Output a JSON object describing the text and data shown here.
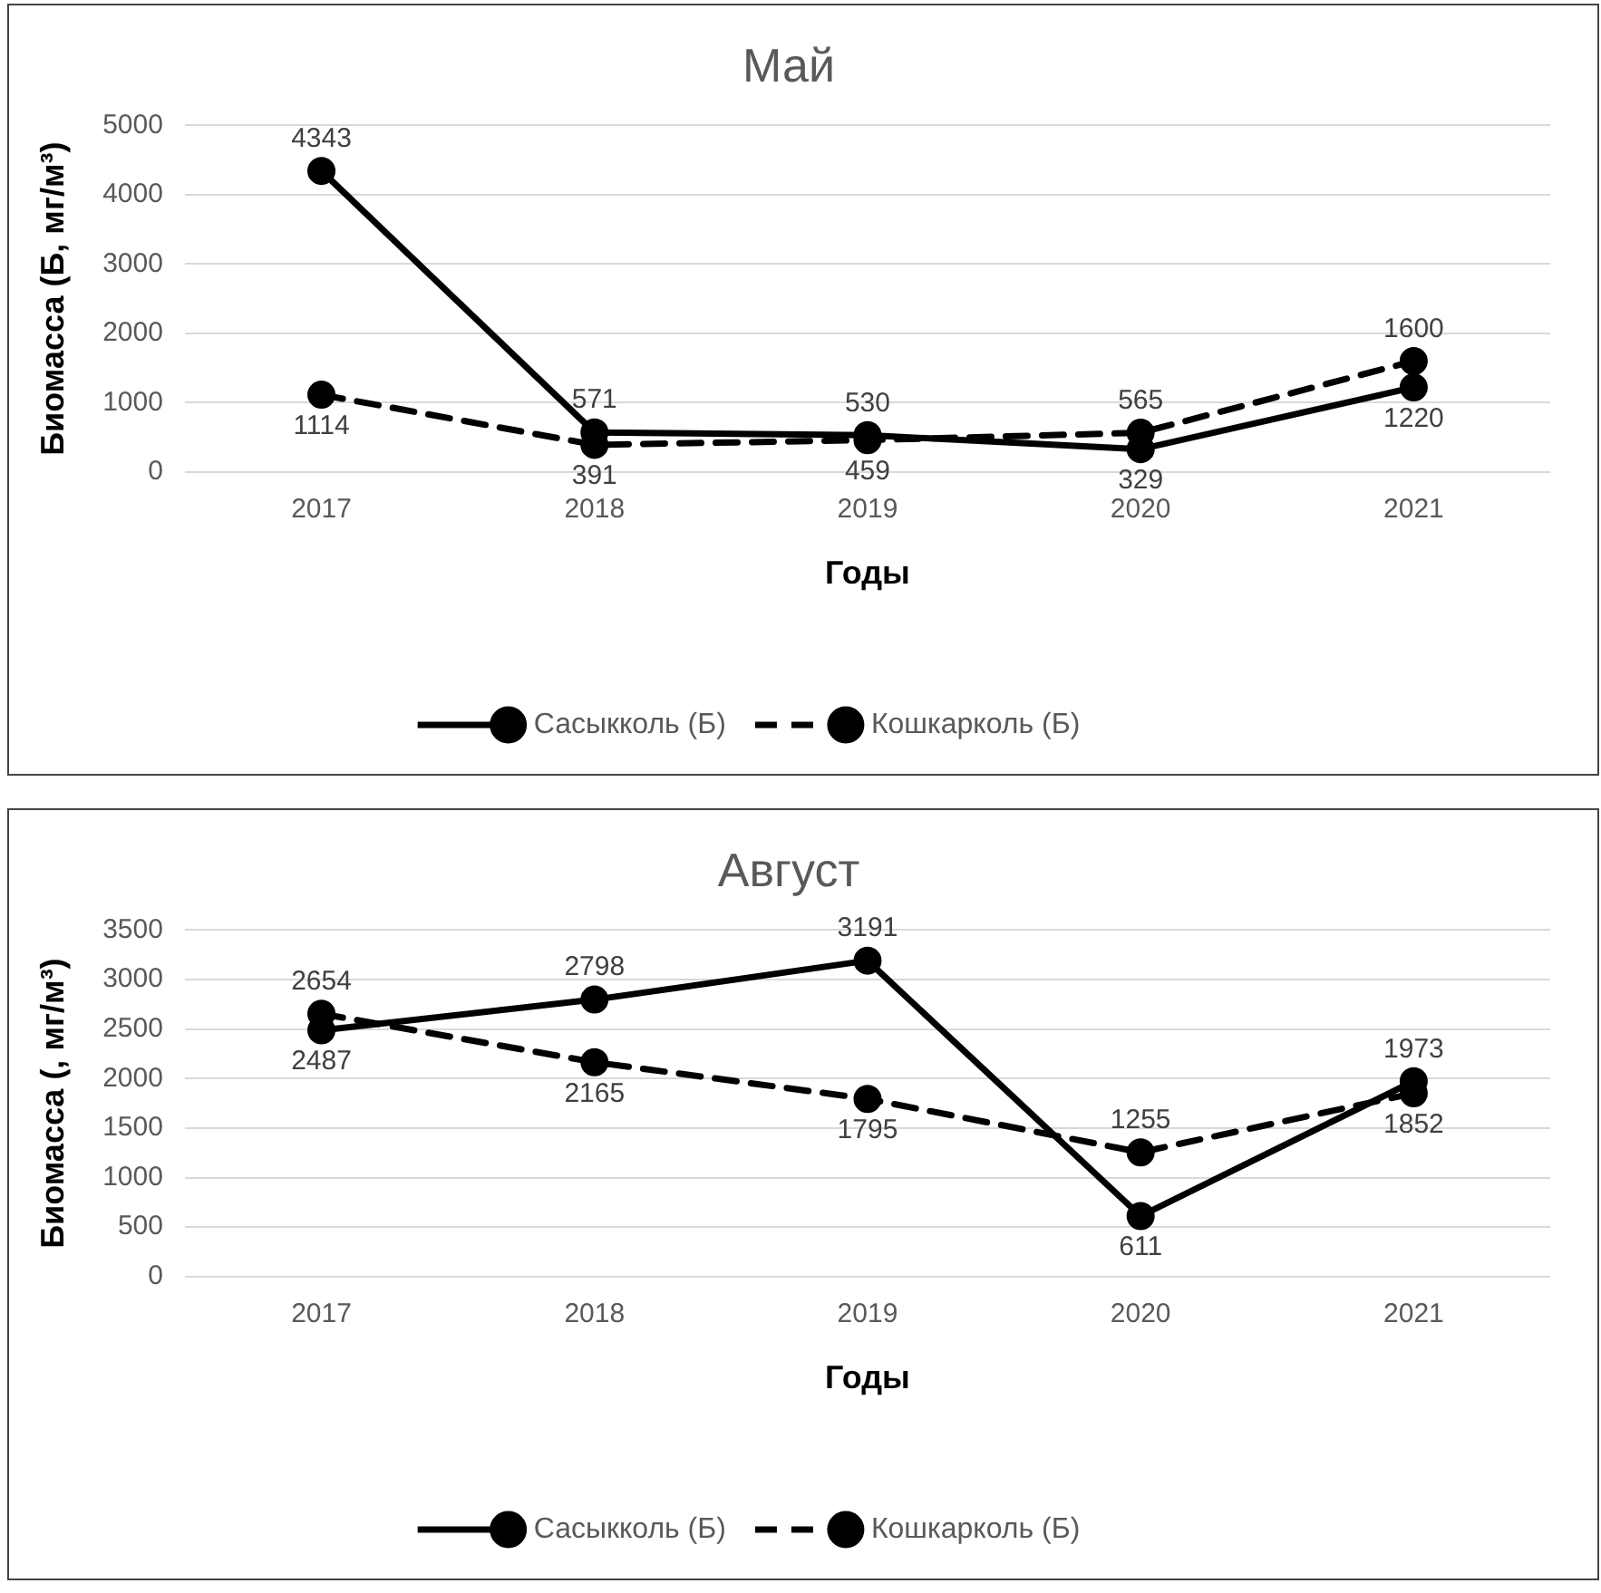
{
  "chart_data": [
    {
      "type": "line",
      "title": "Май",
      "xlabel": "Годы",
      "ylabel": "Биомасса (Б, мг/м³)",
      "categories": [
        "2017",
        "2018",
        "2019",
        "2020",
        "2021"
      ],
      "series": [
        {
          "name": "Сасыкколь (Б)",
          "color": "#000000",
          "values": [
            4343,
            571,
            530,
            329,
            1220
          ],
          "line_style": "solid"
        },
        {
          "name": "Кошкарколь (Б)",
          "color": "#000000",
          "values": [
            1114,
            391,
            459,
            565,
            1600
          ],
          "line_style": "dashed"
        }
      ],
      "ylim": [
        0,
        5000
      ],
      "yticks": [
        0,
        1000,
        2000,
        3000,
        4000,
        5000
      ],
      "grid": "y",
      "legend": "bottom",
      "marker": "circle",
      "data_labels": true
    },
    {
      "type": "line",
      "title": "Август",
      "xlabel": "Годы",
      "ylabel": "Биомасса (, мг/м³)",
      "categories": [
        "2017",
        "2018",
        "2019",
        "2020",
        "2021"
      ],
      "series": [
        {
          "name": "Сасыкколь (Б)",
          "color": "#000000",
          "values": [
            2487,
            2798,
            3191,
            611,
            1973
          ],
          "line_style": "solid"
        },
        {
          "name": "Кошкарколь (Б)",
          "color": "#000000",
          "values": [
            2654,
            2165,
            1795,
            1255,
            1852
          ],
          "line_style": "dashed"
        }
      ],
      "ylim": [
        0,
        3500
      ],
      "yticks": [
        0,
        500,
        1000,
        1500,
        2000,
        2500,
        3000,
        3500
      ],
      "grid": "y",
      "legend": "bottom",
      "marker": "circle",
      "data_labels": true
    }
  ]
}
